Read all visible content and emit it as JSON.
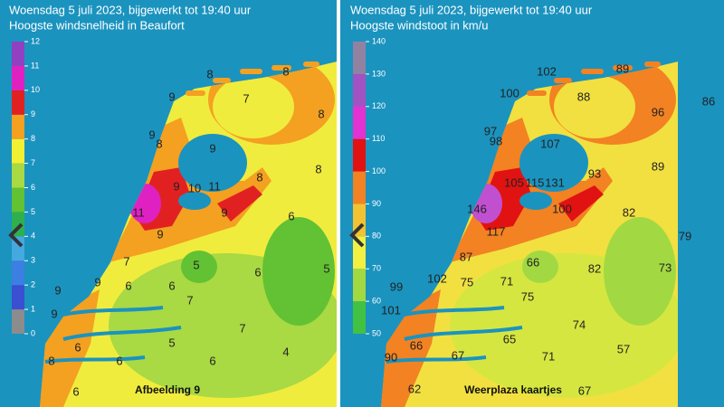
{
  "panels": [
    {
      "title": [
        "Woensdag 5 juli 2023, bijgewerkt tot 19:40 uur",
        "Hoogste windsnelheid in Beaufort"
      ],
      "legend": {
        "ticks": [
          0,
          1,
          2,
          3,
          4,
          5,
          6,
          7,
          8,
          9,
          10,
          11,
          12
        ],
        "colors": [
          "#8c8c8c",
          "#3b4fd2",
          "#3c7fe2",
          "#45a9e0",
          "#2fb04f",
          "#62c233",
          "#a9d943",
          "#f2f033",
          "#f4a021",
          "#e12121",
          "#e021c2",
          "#9140c2"
        ]
      },
      "labels": [
        8,
        8,
        9,
        7,
        8,
        9,
        8,
        9,
        8,
        8,
        9,
        10,
        11,
        11,
        9,
        6,
        9,
        5,
        7,
        6,
        5,
        9,
        9,
        6,
        6,
        7,
        9,
        7,
        6,
        5,
        4,
        6,
        6,
        8,
        6
      ],
      "caption": "Afbeelding 9"
    },
    {
      "title": [
        "Woensdag 5 juli 2023, bijgewerkt tot 19:40 uur",
        "Hoogste windstoot in km/u"
      ],
      "legend": {
        "ticks": [
          50,
          60,
          70,
          80,
          90,
          100,
          110,
          120,
          130,
          140
        ],
        "colors": [
          "#42c242",
          "#a2d942",
          "#f2f042",
          "#f2c232",
          "#f28222",
          "#e11212",
          "#e232d2",
          "#a252c2",
          "#9282a2"
        ]
      },
      "labels": [
        102,
        89,
        100,
        88,
        96,
        86,
        97,
        98,
        107,
        93,
        89,
        105,
        115,
        131,
        100,
        146,
        82,
        117,
        79,
        87,
        66,
        82,
        73,
        102,
        75,
        71,
        99,
        75,
        101,
        74,
        66,
        65,
        57,
        90,
        67,
        71,
        62,
        67
      ],
      "caption": "Weerplaza kaartjes"
    }
  ]
}
